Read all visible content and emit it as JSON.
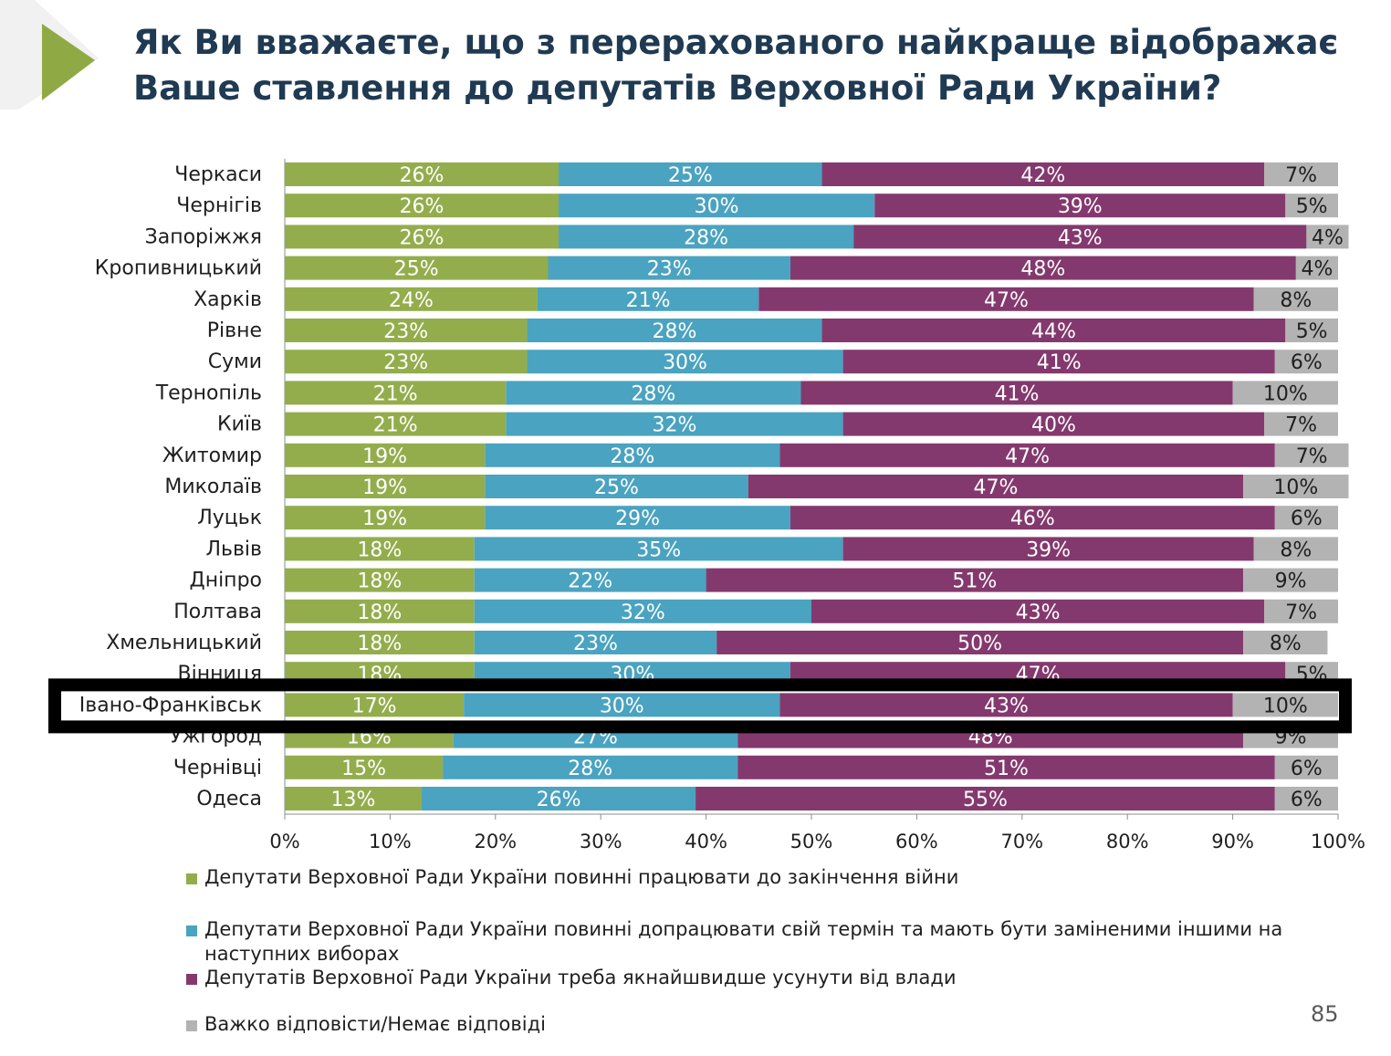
{
  "title_lines": [
    "Як Ви вважаєте, що з перерахованого найкраще відображає",
    "Ваше ставлення до депутатів Верховної Ради України?"
  ],
  "colors": {
    "accent": "#8faa45",
    "title": "#1f3a52",
    "series": [
      "#93ad4c",
      "#4aa3c0",
      "#84396e",
      "#b3b3b3"
    ],
    "highlight_frame": "#000000"
  },
  "legend": [
    {
      "label": "Депутати Верховної Ради України повинні працювати до закінчення війни"
    },
    {
      "label": "Депутати Верховної Ради України повинні допрацювати свій термін та мають  бути заміненими іншими на наступних виборах"
    },
    {
      "label": "Депутатів Верховної Ради України треба якнайшвидше усунути від влади"
    },
    {
      "label": "Важко відповісти/Немає відповіді"
    }
  ],
  "page_number": "85",
  "chart_data": {
    "type": "bar",
    "orientation": "horizontal",
    "stacked": "percent",
    "categories": [
      "Черкаси",
      "Чернігів",
      "Запоріжжя",
      "Кропивницький",
      "Харків",
      "Рівне",
      "Суми",
      "Тернопіль",
      "Київ",
      "Житомир",
      "Миколаїв",
      "Луцьк",
      "Львів",
      "Дніпро",
      "Полтава",
      "Хмельницький",
      "Вінниця",
      "Івано-Франківськ",
      "Ужгород",
      "Чернівці",
      "Одеса"
    ],
    "series": [
      {
        "name": "Депутати Верховної Ради України повинні працювати до закінчення війни",
        "values": [
          26,
          26,
          26,
          25,
          24,
          23,
          23,
          21,
          21,
          19,
          19,
          19,
          18,
          18,
          18,
          18,
          18,
          17,
          16,
          15,
          13
        ]
      },
      {
        "name": "Депутати Верховної Ради України повинні допрацювати свій термін та мають  бути заміненими іншими на наступних виборах",
        "values": [
          25,
          30,
          28,
          23,
          21,
          28,
          30,
          28,
          32,
          28,
          25,
          29,
          35,
          22,
          32,
          23,
          30,
          30,
          27,
          28,
          26
        ]
      },
      {
        "name": "Депутатів Верховної Ради України треба якнайшвидше усунути від влади",
        "values": [
          42,
          39,
          43,
          48,
          47,
          44,
          41,
          41,
          40,
          47,
          47,
          46,
          39,
          51,
          43,
          50,
          47,
          43,
          48,
          51,
          55
        ]
      },
      {
        "name": "Важко відповісти/Немає відповіді",
        "values": [
          7,
          5,
          4,
          4,
          8,
          5,
          6,
          10,
          7,
          7,
          10,
          6,
          8,
          9,
          7,
          8,
          5,
          10,
          9,
          6,
          6
        ]
      }
    ],
    "value_suffix": "%",
    "xlim": [
      0,
      100
    ],
    "xticks": [
      "0%",
      "10%",
      "20%",
      "30%",
      "40%",
      "50%",
      "60%",
      "70%",
      "80%",
      "90%",
      "100%"
    ],
    "grid": false,
    "legend_position": "bottom",
    "highlighted_category": "Івано-Франківськ"
  }
}
